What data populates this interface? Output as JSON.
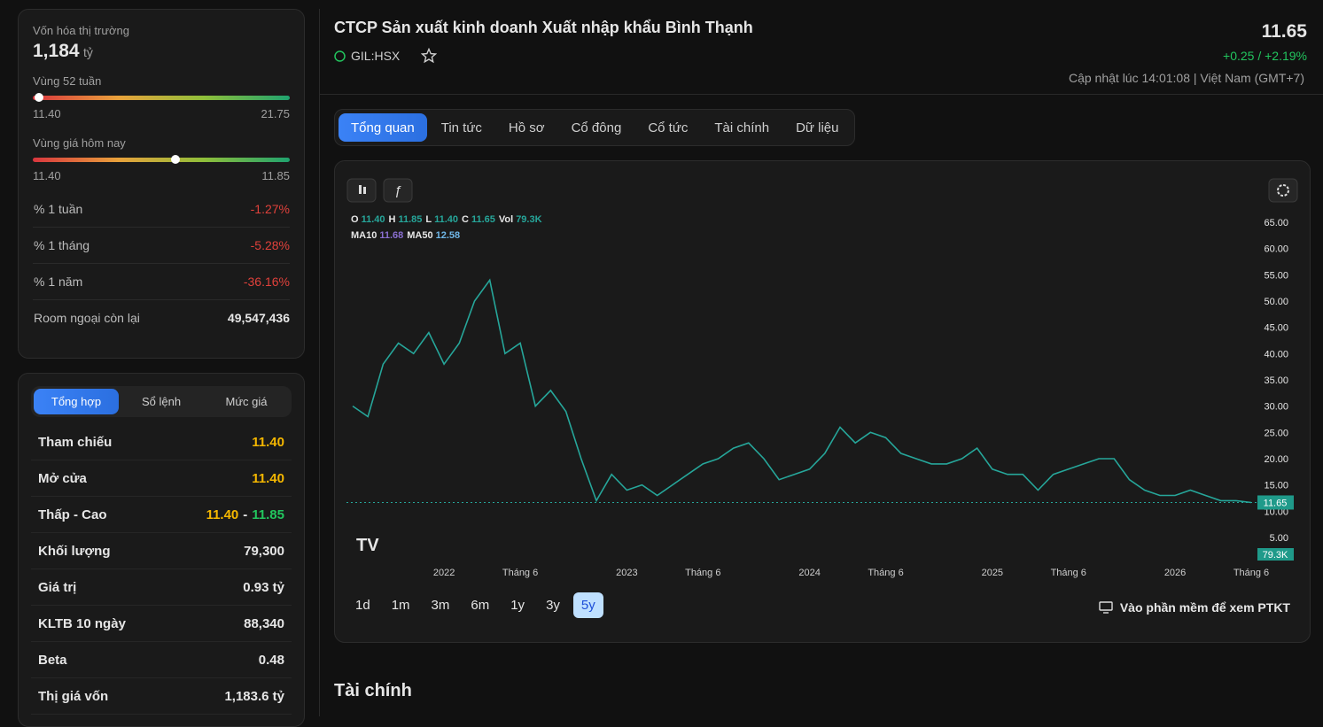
{
  "summary": {
    "market_cap_label": "Vốn hóa thị trường",
    "market_cap": "1,184",
    "market_cap_unit": "tỷ",
    "range_52w": {
      "label": "Vùng 52 tuần",
      "low": {
        "value": 11.4,
        "label": "11.40"
      },
      "high": {
        "value": 21.75,
        "label": "21.75"
      }
    },
    "range_today": {
      "label": "Vùng giá hôm nay",
      "low": {
        "value": 11.4,
        "label": "11.40"
      },
      "high": {
        "value": 11.85,
        "label": "11.85"
      }
    },
    "rows": [
      {
        "label": "% 1 tuần",
        "value": "-1.27%"
      },
      {
        "label": "% 1 tháng",
        "value": "-5.28%"
      },
      {
        "label": "% 1 năm",
        "value": "-36.16%"
      },
      {
        "label": "Room ngoại còn lại",
        "value": "49,547,436"
      }
    ]
  },
  "trading": {
    "tabs": [
      "Tổng hợp",
      "Sổ lệnh",
      "Mức giá"
    ],
    "rows": [
      {
        "label": "Tham chiếu",
        "value": "11.40"
      },
      {
        "label": "Mở cửa",
        "value": "11.40"
      },
      {
        "label": "Thấp - Cao",
        "low": "11.40",
        "sep": "-",
        "high": "11.85"
      },
      {
        "label": "Khối lượng",
        "value": "79,300"
      },
      {
        "label": "Giá trị",
        "value": "0.93 tỷ"
      },
      {
        "label": "KLTB 10 ngày",
        "value": "88,340"
      },
      {
        "label": "Beta",
        "value": "0.48"
      },
      {
        "label": "Thị giá vốn",
        "value": "1,183.6 tỷ"
      }
    ]
  },
  "header": {
    "company": "CTCP Sản xuất kinh doanh Xuất nhập khẩu Bình Thạnh",
    "ticker": "GIL:HSX",
    "price": {
      "value": 11.65,
      "label": "11.65"
    },
    "change": "+0.25 / +2.19%",
    "updated": "Cập nhật lúc 14:01:08 | Việt Nam (GMT+7)"
  },
  "tabs": [
    "Tổng quan",
    "Tin tức",
    "Hồ sơ",
    "Cổ đông",
    "Cổ tức",
    "Tài chính",
    "Dữ liệu"
  ],
  "ranges": [
    "1d",
    "1m",
    "3m",
    "6m",
    "1y",
    "3y",
    "5y"
  ],
  "open_link": "Vào phần mềm để xem PTKT",
  "section_title": "Tài chính",
  "chart_data": {
    "type": "line",
    "legend": [
      {
        "key": "O",
        "value": "11.40"
      },
      {
        "key": "H",
        "value": "11.85"
      },
      {
        "key": "L",
        "value": "11.40"
      },
      {
        "key": "C",
        "value": "11.65"
      },
      {
        "key": "Vol",
        "value": "79.3K"
      }
    ],
    "ma_legend": [
      {
        "key": "MA10",
        "value": "11.68"
      },
      {
        "key": "MA50",
        "value": "12.58"
      }
    ],
    "volume_label": "79.3K",
    "last_price": {
      "value": 11.65,
      "label": "11.65"
    },
    "color": "#26a69a",
    "categories": [
      null,
      null,
      null,
      null,
      null,
      null,
      "2022",
      null,
      null,
      null,
      null,
      "Tháng 6",
      null,
      null,
      null,
      null,
      null,
      null,
      "2023",
      null,
      null,
      null,
      null,
      "Tháng 6",
      null,
      null,
      null,
      null,
      null,
      null,
      "2024",
      null,
      null,
      null,
      null,
      "Tháng 6",
      null,
      null,
      null,
      null,
      null,
      null,
      "2025",
      null,
      null,
      null,
      null,
      "Tháng 6",
      null,
      null,
      null,
      null,
      null,
      null,
      "2026",
      null,
      null,
      null,
      null,
      "Tháng 6"
    ],
    "values": [
      30,
      28,
      38,
      42,
      40,
      44,
      38,
      42,
      50,
      54,
      40,
      42,
      30,
      33,
      29,
      20,
      12,
      17,
      14,
      15,
      13,
      15,
      17,
      19,
      20,
      22,
      23,
      20,
      16,
      17,
      18,
      21,
      26,
      23,
      25,
      24,
      21,
      20,
      19,
      19,
      20,
      22,
      18,
      17,
      17,
      14,
      17,
      18,
      19,
      20,
      20,
      16,
      14,
      13,
      13,
      14,
      13,
      12,
      12,
      11.65
    ],
    "ylim": [
      0.6,
      66.7
    ],
    "yticks": [
      {
        "value": 5,
        "label": "5.00"
      },
      {
        "value": 10,
        "label": "10.00"
      },
      {
        "value": 15,
        "label": "15.00"
      },
      {
        "value": 20,
        "label": "20.00"
      },
      {
        "value": 25,
        "label": "25.00"
      },
      {
        "value": 30,
        "label": "30.00"
      },
      {
        "value": 35,
        "label": "35.00"
      },
      {
        "value": 40,
        "label": "40.00"
      },
      {
        "value": 45,
        "label": "45.00"
      },
      {
        "value": 50,
        "label": "50.00"
      },
      {
        "value": 55,
        "label": "55.00"
      },
      {
        "value": 60,
        "label": "60.00"
      },
      {
        "value": 65,
        "label": "65.00"
      }
    ]
  }
}
